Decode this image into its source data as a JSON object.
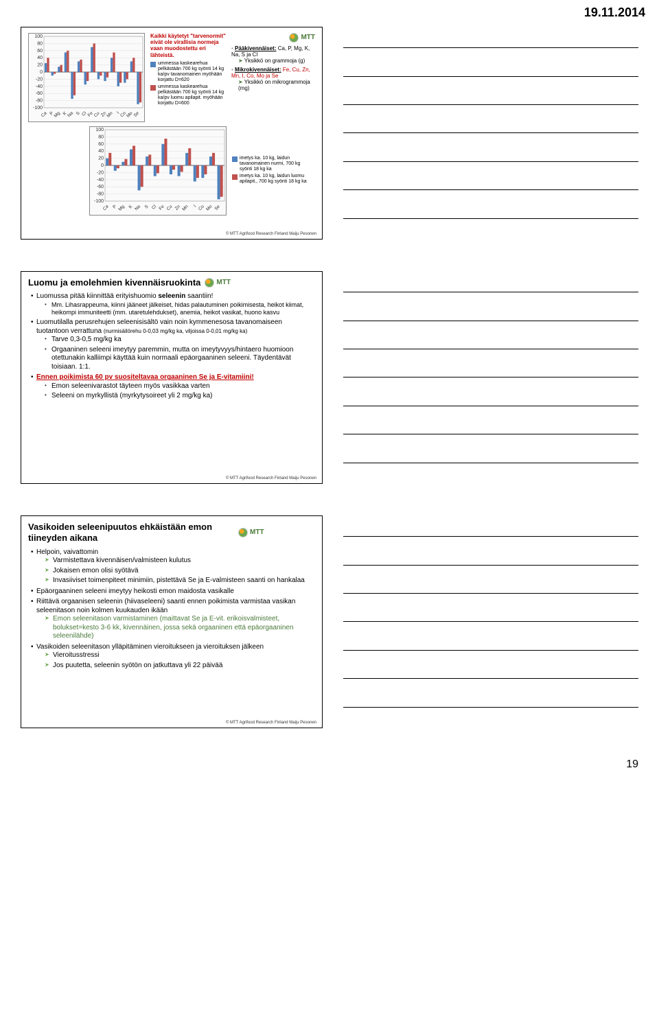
{
  "header_date": "19.11.2014",
  "page_number": "19",
  "footer_text": "© MTT Agrifood Research Finland Maiju Pesonen",
  "mtt_label": "MTT",
  "slide1": {
    "note_top": "Kaikki käytetyt \"tarvenormit\" eivät ole virallisia normeja vaan muodostettu eri lähteistä.",
    "legend_a": "ummessa kaskearehua pelkästään 700 kg syönti 14 kg ka/pv tavanomainen myöhään korjattu D=620",
    "legend_b": "ummessa kaskearehua pelkästään 700 kg syönti 14 kg ka/pv luomu apilapit. myöhään korjattu D=600",
    "bullets1_a": "Pääkivennäiset:",
    "bullets1_a_tail": " Ca, P, Mg, K, Na, S ja Cl",
    "bullets1_a_sub": "Yksikkö on grammoja (g)",
    "bullets1_b": "Mikrokivennäiset:",
    "bullets1_b_tail": " Fe, Cu, Zn, Mn, I, Co, Mo ja Se",
    "bullets1_b_sub": "Yksikkö on mikrogrammoja (mg)",
    "chart1": {
      "ylim": [
        -100,
        100
      ],
      "ticks": [
        -100,
        -80,
        -60,
        -40,
        -20,
        0,
        20,
        40,
        60,
        80,
        100
      ],
      "categories": [
        "Ca",
        "P",
        "Mg",
        "K",
        "Na",
        "S",
        "Cl",
        "Fe",
        "Cu",
        "Zn",
        "Mn",
        "I",
        "Co",
        "Mo",
        "Se"
      ],
      "series_a": [
        25,
        -10,
        15,
        55,
        -75,
        30,
        -35,
        70,
        -20,
        -25,
        40,
        -40,
        -30,
        30,
        -90
      ],
      "series_b": [
        40,
        -5,
        20,
        60,
        -65,
        35,
        -25,
        80,
        -10,
        -15,
        55,
        -30,
        -20,
        40,
        -85
      ],
      "color_a": "#4f81bd",
      "color_b": "#c0504d"
    },
    "chart2": {
      "ylim": [
        -100,
        100
      ],
      "ticks": [
        -100,
        -80,
        -60,
        -40,
        -20,
        0,
        20,
        40,
        60,
        80,
        100
      ],
      "categories": [
        "Ca",
        "P",
        "Mg",
        "K",
        "Na",
        "S",
        "Cl",
        "Fe",
        "Cu",
        "Zn",
        "Mn",
        "I",
        "Co",
        "Mo",
        "Se"
      ],
      "series_a": [
        20,
        -15,
        10,
        45,
        -70,
        25,
        -30,
        60,
        -25,
        -30,
        35,
        -45,
        -35,
        25,
        -95
      ],
      "series_b": [
        35,
        -8,
        18,
        55,
        -60,
        30,
        -22,
        75,
        -12,
        -18,
        48,
        -35,
        -25,
        35,
        -88
      ],
      "color_a": "#4f81bd",
      "color_b": "#c0504d",
      "legend2_a": "imetys ka. 10 kg, laidun tavanomainen nurmi, 700 kg syönti 18 kg ka",
      "legend2_b": "imetys ka. 10 kg, laidun luomu apilapit., 700 kg syönti 18 kg ka"
    }
  },
  "slide2": {
    "title": "Luomu ja emolehmien kivennäisruokinta",
    "b1": "Luomussa pitää kiinnittää erityishuomio ",
    "b1_bold": "seleenin",
    "b1_tail": " saantiin!",
    "b1_sub": "Mm. Lihasrappeuma, kiinni jääneet jälkeiset, hidas palautuminen poikimisesta, heikot kiimat, heikompi immuniteetti (mm. utaretulehdukset), anemia, heikot vasikat, huono kasvu",
    "b2": "Luomutilalla perusrehujen seleenisisältö vain noin kymmenesosa tavanomaiseen tuotantoon verrattuna",
    "b2_note": "(nurmisäilörehu 0-0,03 mg/kg ka, viljoissa 0-0,01 mg/kg ka)",
    "b2_s1": "Tarve 0,3-0,5 mg/kg ka",
    "b2_s2": "Orgaaninen seleeni imeytyy paremmin, mutta on imeytyvyys/hintaero huomioon otettunakin kalliimpi käyttää kuin normaali epäorgaaninen seleeni. Täydentävät toisiaan. 1:1.",
    "b3": "Ennen poikimista 60 pv suositeltavaa orgaaninen Se ja E-vitamiini!",
    "b3_s1": "Emon seleenivarastot täyteen myös vasikkaa varten",
    "b3_s2": "Seleeni on myrkyllistä (myrkytysoireet yli 2 mg/kg ka)"
  },
  "slide3": {
    "title": "Vasikoiden seleenipuutos ehkäistään emon tiineyden aikana",
    "b1": "Helpoin, vaivattomin",
    "b1_a1": "Varmistettava kivennäisen/valmisteen kulutus",
    "b1_a2": "Jokaisen emon olisi syötävä",
    "b1_a3": "Invasiiviset toimenpiteet minimiin, pistettävä Se ja E-valmisteen saanti on hankalaa",
    "b2": "Epäorgaaninen seleeni imeytyy heikosti emon maidosta vasikalle",
    "b3": "Riittävä orgaanisen seleenin (hiivaseleeni) saanti ennen poikimista varmistaa vasikan seleenitason noin kolmen kuukauden ikään",
    "b3_a1": "Emon seleenitason varmistaminen (maittavat Se ja E-vit. erikoisvalmisteet, bolukset=kesto 3-6 kk, kivennäinen, jossa sekä orgaaninen että epäorgaaninen seleenilähde)",
    "b4": "Vasikoiden seleenitason ylläpitäminen vieroitukseen ja vieroituksen jälkeen",
    "b4_a1": "Vieroitusstressi",
    "b4_a2": "Jos puutetta, seleenin syötön on jatkuttava yli 22 päivää"
  }
}
